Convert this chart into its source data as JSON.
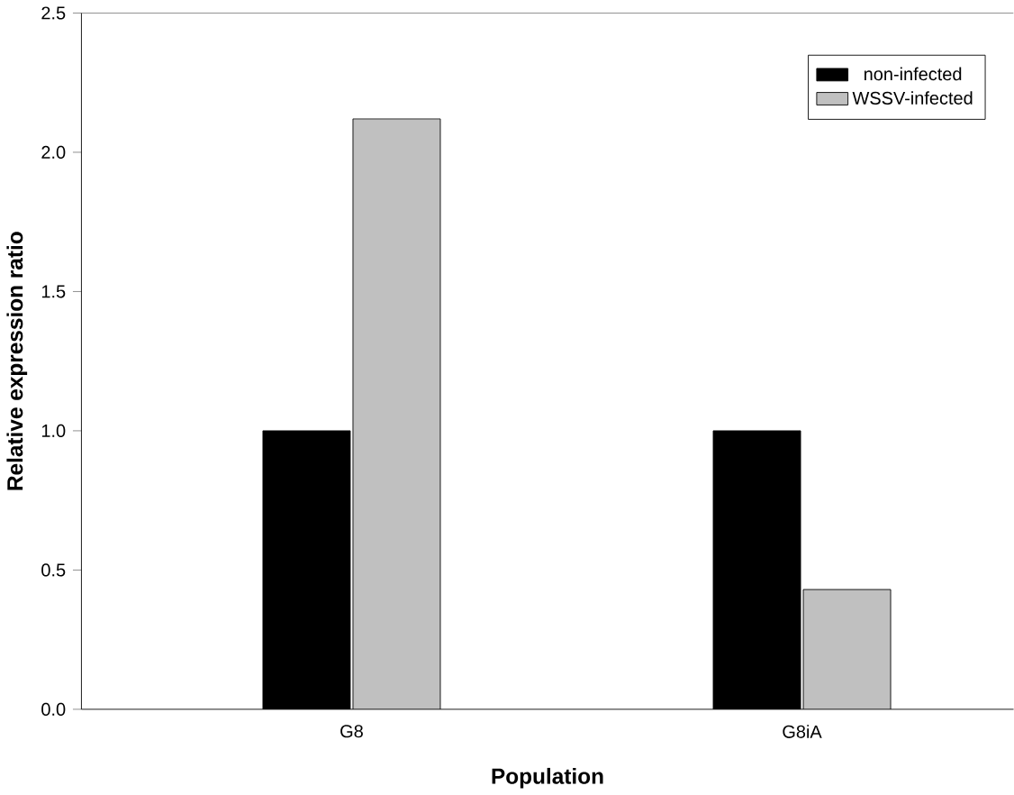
{
  "chart_data": {
    "type": "bar",
    "xlabel": "Population",
    "ylabel": "Relative expression ratio",
    "categories": [
      "G8",
      "G8iA"
    ],
    "series": [
      {
        "name": "non-infected",
        "color": "#000000",
        "values": [
          1.0,
          1.0
        ]
      },
      {
        "name": "WSSV-infected",
        "color": "#c0c0c0",
        "values": [
          2.12,
          0.43
        ]
      }
    ],
    "ylim": [
      0,
      2.5
    ],
    "yticks": [
      {
        "value": 0,
        "label": "0.0"
      },
      {
        "value": 0.5,
        "label": "0.5"
      },
      {
        "value": 1,
        "label": "1.0"
      },
      {
        "value": 1.5,
        "label": "1.5"
      },
      {
        "value": 2,
        "label": "2.0"
      },
      {
        "value": 2.5,
        "label": "2.5"
      }
    ],
    "legend": "top right",
    "grid": false
  }
}
